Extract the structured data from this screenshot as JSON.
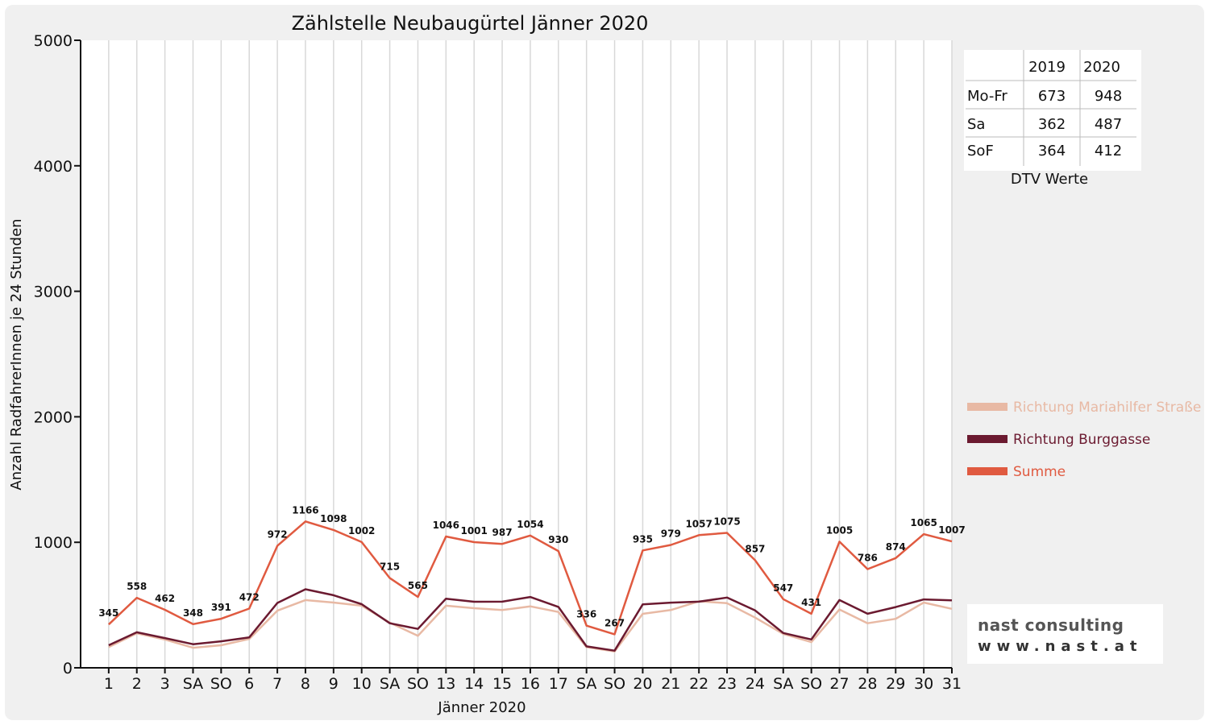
{
  "chart_data": {
    "type": "line",
    "title": "Zählstelle Neubaugürtel Jänner 2020",
    "xlabel": "Jänner 2020",
    "ylabel": "Anzahl RadfahrerInnen je 24 Stunden",
    "ylim": [
      0,
      5000
    ],
    "yticks": [
      0,
      1000,
      2000,
      3000,
      4000,
      5000
    ],
    "grid": "vertical",
    "legend_position": "right",
    "categories": [
      "1",
      "2",
      "3",
      "SA",
      "SO",
      "6",
      "7",
      "8",
      "9",
      "10",
      "SA",
      "SO",
      "13",
      "14",
      "15",
      "16",
      "17",
      "SA",
      "SO",
      "20",
      "21",
      "22",
      "23",
      "24",
      "SA",
      "SO",
      "27",
      "28",
      "29",
      "30",
      "31"
    ],
    "red_categories": [
      0,
      4,
      5,
      11,
      18,
      25
    ],
    "series": [
      {
        "name": "Richtung Mariahilfer Straße",
        "color": "#e8b9a4",
        "values": [
          165,
          275,
          225,
          160,
          180,
          230,
          455,
          540,
          520,
          495,
          360,
          255,
          495,
          475,
          460,
          490,
          445,
          165,
          130,
          430,
          460,
          530,
          515,
          400,
          270,
          205,
          465,
          355,
          390,
          520,
          470
        ]
      },
      {
        "name": "Richtung Burggasse",
        "color": "#6b1a30",
        "values": [
          180,
          283,
          237,
          188,
          211,
          242,
          517,
          626,
          578,
          507,
          355,
          310,
          551,
          526,
          527,
          564,
          485,
          171,
          137,
          505,
          519,
          527,
          560,
          457,
          277,
          226,
          540,
          431,
          484,
          545,
          537
        ]
      },
      {
        "name": "Summe",
        "color": "#e05a40",
        "values": [
          345,
          558,
          462,
          348,
          391,
          472,
          972,
          1166,
          1098,
          1002,
          715,
          565,
          1046,
          1001,
          987,
          1054,
          930,
          336,
          267,
          935,
          979,
          1057,
          1075,
          857,
          547,
          431,
          1005,
          786,
          874,
          1065,
          1007
        ],
        "labels": [
          "345",
          "558",
          "462",
          "348",
          "391",
          "472",
          "972",
          "1166",
          "1098",
          "1002",
          "715",
          "565",
          "1046",
          "1001",
          "987",
          "1054",
          "930",
          "336",
          "267",
          "935",
          "979",
          "1057",
          "1075",
          "857",
          "547",
          "431",
          "1005",
          "786",
          "874",
          "1065",
          "1007"
        ]
      }
    ]
  },
  "dtv_table": {
    "caption": "DTV Werte",
    "columns": [
      "2019",
      "2020"
    ],
    "rows": [
      {
        "label": "Mo-Fr",
        "values": [
          "673",
          "948"
        ]
      },
      {
        "label": "Sa",
        "values": [
          "362",
          "487"
        ]
      },
      {
        "label": "SoF",
        "values": [
          "364",
          "412"
        ]
      }
    ]
  },
  "logo": {
    "name": "nast consulting",
    "url": "www.nast.at"
  }
}
